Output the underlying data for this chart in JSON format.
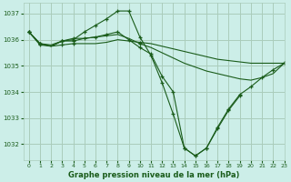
{
  "title": "Graphe pression niveau de la mer (hPa)",
  "bg_color": "#cceee8",
  "grid_color": "#aaccbb",
  "line_color": "#1a5c1a",
  "xlim": [
    -0.5,
    23
  ],
  "ylim": [
    1031.4,
    1037.4
  ],
  "yticks": [
    1032,
    1033,
    1034,
    1035,
    1036,
    1037
  ],
  "xticks": [
    0,
    1,
    2,
    3,
    4,
    5,
    6,
    7,
    8,
    9,
    10,
    11,
    12,
    13,
    14,
    15,
    16,
    17,
    18,
    19,
    20,
    21,
    22,
    23
  ],
  "series": [
    {
      "x": [
        0,
        1,
        2,
        3,
        4,
        5,
        6,
        7,
        8,
        9,
        10,
        11,
        12,
        13,
        14,
        15,
        16,
        17,
        18,
        19,
        20,
        21,
        22,
        23
      ],
      "y": [
        1036.3,
        1035.8,
        1035.75,
        1035.8,
        1035.85,
        1035.85,
        1035.85,
        1035.9,
        1036.0,
        1035.95,
        1035.9,
        1035.85,
        1035.75,
        1035.65,
        1035.55,
        1035.45,
        1035.35,
        1035.25,
        1035.2,
        1035.15,
        1035.1,
        1035.1,
        1035.1,
        1035.1
      ],
      "markers": [
        0,
        1,
        3,
        4,
        10,
        23
      ]
    },
    {
      "x": [
        0,
        1,
        2,
        3,
        4,
        5,
        6,
        7,
        8,
        9,
        10,
        11,
        12,
        13,
        14,
        15,
        16,
        17,
        18,
        19,
        20,
        21,
        22,
        23
      ],
      "y": [
        1036.3,
        1035.85,
        1035.8,
        1035.95,
        1036.05,
        1036.05,
        1036.1,
        1036.15,
        1036.2,
        1036.05,
        1035.85,
        1035.7,
        1035.5,
        1035.3,
        1035.1,
        1034.95,
        1034.8,
        1034.7,
        1034.6,
        1034.5,
        1034.45,
        1034.55,
        1034.7,
        1035.1
      ],
      "markers": [
        0,
        1,
        3,
        4,
        10,
        23
      ]
    },
    {
      "x": [
        0,
        1,
        2,
        3,
        4,
        5,
        6,
        7,
        8,
        9,
        10,
        11,
        12,
        13,
        14,
        15,
        16,
        17,
        18,
        19,
        20,
        21,
        22,
        23
      ],
      "y": [
        1036.3,
        1035.85,
        1035.75,
        1035.95,
        1036.0,
        1036.3,
        1036.55,
        1036.8,
        1037.1,
        1037.1,
        1036.1,
        1035.4,
        1034.35,
        1033.15,
        1031.85,
        1031.55,
        1031.85,
        1032.65,
        1033.35,
        1033.9,
        1034.2,
        1034.55,
        1034.85,
        1035.1
      ],
      "markers": [
        0,
        1,
        3,
        4,
        5,
        6,
        7,
        8,
        9,
        10,
        11,
        12,
        13,
        14,
        15,
        16,
        17,
        18,
        19,
        20,
        21,
        22,
        23
      ]
    },
    {
      "x": [
        0,
        1,
        2,
        3,
        4,
        5,
        6,
        7,
        8,
        9,
        10,
        11,
        12,
        13,
        14,
        15,
        16,
        17,
        18,
        19
      ],
      "y": [
        1036.3,
        1035.85,
        1035.75,
        1035.95,
        1035.95,
        1036.05,
        1036.1,
        1036.2,
        1036.3,
        1036.0,
        1035.7,
        1035.45,
        1034.6,
        1034.0,
        1031.85,
        1031.55,
        1031.85,
        1032.6,
        1033.3,
        1033.85
      ],
      "markers": [
        0,
        1,
        3,
        4,
        5,
        6,
        7,
        8,
        9,
        10,
        11,
        12,
        13,
        14,
        15,
        16,
        17,
        18,
        19
      ]
    }
  ]
}
